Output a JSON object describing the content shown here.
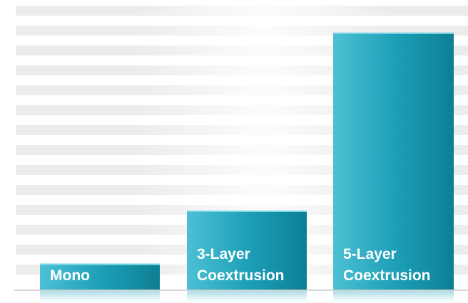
{
  "chart_data": {
    "type": "bar",
    "categories": [
      "Mono",
      "3-Layer Coextrusion",
      "5-Layer Coextrusion"
    ],
    "category_lines": [
      [
        "Mono"
      ],
      [
        "3-Layer",
        "Coextrusion"
      ],
      [
        "5-Layer",
        "Coextrusion"
      ]
    ],
    "values": [
      1,
      3,
      9.7
    ],
    "ylim": [
      0,
      10.5
    ],
    "grid": false,
    "legend": "none",
    "bar_color": "#1a9db5",
    "bar_color_light": "#4cc0d4",
    "bar_color_dark": "#0e7f94",
    "background_stripe_color": "#dcdcdc"
  }
}
